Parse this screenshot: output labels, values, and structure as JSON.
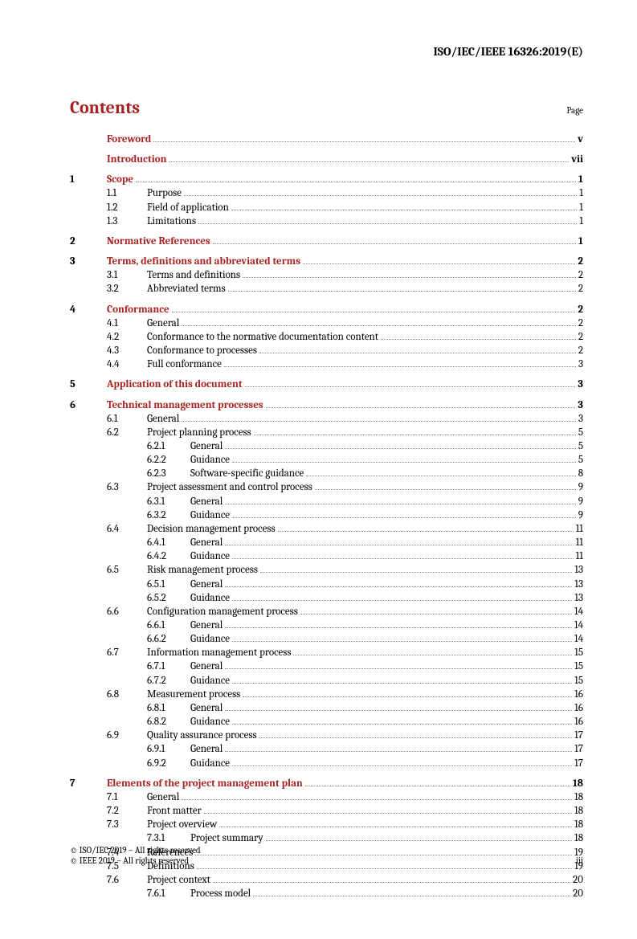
{
  "header": "ISO/IEC/IEEE 16326:2019(E)",
  "contentsTitle": "Contents",
  "pageLabel": "Page",
  "footer": {
    "line1": "© ISO/IEC 2019 – All rights reserved",
    "line2": "© IEEE 2019 – All rights reserved",
    "pageNumber": "iii"
  },
  "toc": [
    {
      "type": "group",
      "rows": [
        {
          "level": 0,
          "bold": true,
          "red": true,
          "title": "Foreword",
          "page": "v",
          "boldPage": true
        }
      ]
    },
    {
      "type": "group",
      "rows": [
        {
          "level": 0,
          "bold": true,
          "red": true,
          "title": "Introduction",
          "page": "vii",
          "boldPage": true
        }
      ]
    },
    {
      "type": "group",
      "rows": [
        {
          "level": 0,
          "num1": "1",
          "bold": true,
          "red": true,
          "title": "Scope",
          "page": "1",
          "boldPage": true
        },
        {
          "level": 1,
          "num2": "1.1",
          "title": "Purpose",
          "page": "1"
        },
        {
          "level": 1,
          "num2": "1.2",
          "title": "Field of application",
          "page": "1"
        },
        {
          "level": 1,
          "num2": "1.3",
          "title": "Limitations",
          "page": "1"
        }
      ]
    },
    {
      "type": "group",
      "rows": [
        {
          "level": 0,
          "num1": "2",
          "bold": true,
          "red": true,
          "title": "Normative References",
          "page": "1",
          "boldPage": true
        }
      ]
    },
    {
      "type": "group",
      "rows": [
        {
          "level": 0,
          "num1": "3",
          "bold": true,
          "red": true,
          "title": "Terms, definitions and abbreviated terms",
          "page": "2",
          "boldPage": true
        },
        {
          "level": 1,
          "num2": "3.1",
          "title": "Terms and definitions",
          "page": "2"
        },
        {
          "level": 1,
          "num2": "3.2",
          "title": "Abbreviated terms",
          "page": "2"
        }
      ]
    },
    {
      "type": "group",
      "rows": [
        {
          "level": 0,
          "num1": "4",
          "bold": true,
          "red": true,
          "title": "Conformance",
          "page": "2",
          "boldPage": true
        },
        {
          "level": 1,
          "num2": "4.1",
          "title": "General",
          "page": "2"
        },
        {
          "level": 1,
          "num2": "4.2",
          "title": "Conformance to the normative documentation content",
          "page": "2"
        },
        {
          "level": 1,
          "num2": "4.3",
          "title": "Conformance to processes",
          "page": "2"
        },
        {
          "level": 1,
          "num2": "4.4",
          "title": "Full conformance",
          "page": "3"
        }
      ]
    },
    {
      "type": "group",
      "rows": [
        {
          "level": 0,
          "num1": "5",
          "bold": true,
          "red": true,
          "title": "Application of this document",
          "page": "3",
          "boldPage": true
        }
      ]
    },
    {
      "type": "group",
      "rows": [
        {
          "level": 0,
          "num1": "6",
          "bold": true,
          "red": true,
          "title": "Technical management processes",
          "page": "3",
          "boldPage": true
        },
        {
          "level": 1,
          "num2": "6.1",
          "title": "General",
          "page": "3"
        },
        {
          "level": 1,
          "num2": "6.2",
          "title": "Project planning process",
          "page": "5"
        },
        {
          "level": 2,
          "num3": "6.2.1",
          "title": "General",
          "page": "5"
        },
        {
          "level": 2,
          "num3": "6.2.2",
          "title": "Guidance",
          "page": "5"
        },
        {
          "level": 2,
          "num3": "6.2.3",
          "title": "Software-specific guidance",
          "page": "8"
        },
        {
          "level": 1,
          "num2": "6.3",
          "title": "Project assessment and control process",
          "page": "9"
        },
        {
          "level": 2,
          "num3": "6.3.1",
          "title": "General",
          "page": "9"
        },
        {
          "level": 2,
          "num3": "6.3.2",
          "title": "Guidance",
          "page": "9"
        },
        {
          "level": 1,
          "num2": "6.4",
          "title": "Decision management process",
          "page": "11"
        },
        {
          "level": 2,
          "num3": "6.4.1",
          "title": "General",
          "page": "11"
        },
        {
          "level": 2,
          "num3": "6.4.2",
          "title": "Guidance",
          "page": "11"
        },
        {
          "level": 1,
          "num2": "6.5",
          "title": "Risk management process",
          "page": "13"
        },
        {
          "level": 2,
          "num3": "6.5.1",
          "title": "General",
          "page": "13"
        },
        {
          "level": 2,
          "num3": "6.5.2",
          "title": "Guidance",
          "page": "13"
        },
        {
          "level": 1,
          "num2": "6.6",
          "title": "Configuration management process",
          "page": "14"
        },
        {
          "level": 2,
          "num3": "6.6.1",
          "title": "General",
          "page": "14"
        },
        {
          "level": 2,
          "num3": "6.6.2",
          "title": "Guidance",
          "page": "14"
        },
        {
          "level": 1,
          "num2": "6.7",
          "title": "Information management process",
          "page": "15"
        },
        {
          "level": 2,
          "num3": "6.7.1",
          "title": "General",
          "page": "15"
        },
        {
          "level": 2,
          "num3": "6.7.2",
          "title": "Guidance",
          "page": "15"
        },
        {
          "level": 1,
          "num2": "6.8",
          "title": "Measurement process",
          "page": "16"
        },
        {
          "level": 2,
          "num3": "6.8.1",
          "title": "General",
          "page": "16"
        },
        {
          "level": 2,
          "num3": "6.8.2",
          "title": "Guidance",
          "page": "16"
        },
        {
          "level": 1,
          "num2": "6.9",
          "title": "Quality assurance process",
          "page": "17"
        },
        {
          "level": 2,
          "num3": "6.9.1",
          "title": "General",
          "page": "17"
        },
        {
          "level": 2,
          "num3": "6.9.2",
          "title": "Guidance",
          "page": "17"
        }
      ]
    },
    {
      "type": "group",
      "rows": [
        {
          "level": 0,
          "num1": "7",
          "bold": true,
          "red": true,
          "title": "Elements of the project management plan",
          "page": "18",
          "boldPage": true
        },
        {
          "level": 1,
          "num2": "7.1",
          "title": "General",
          "page": "18"
        },
        {
          "level": 1,
          "num2": "7.2",
          "title": "Front matter",
          "page": "18"
        },
        {
          "level": 1,
          "num2": "7.3",
          "title": "Project overview",
          "page": "18"
        },
        {
          "level": 2,
          "num3": "7.3.1",
          "title": "Project summary",
          "page": "18"
        },
        {
          "level": 1,
          "num2": "7.4",
          "title": "References",
          "page": "19"
        },
        {
          "level": 1,
          "num2": "7.5",
          "title": "Definitions",
          "page": "19"
        },
        {
          "level": 1,
          "num2": "7.6",
          "title": "Project context",
          "page": "20"
        },
        {
          "level": 2,
          "num3": "7.6.1",
          "title": "Process model",
          "page": "20"
        }
      ]
    }
  ]
}
